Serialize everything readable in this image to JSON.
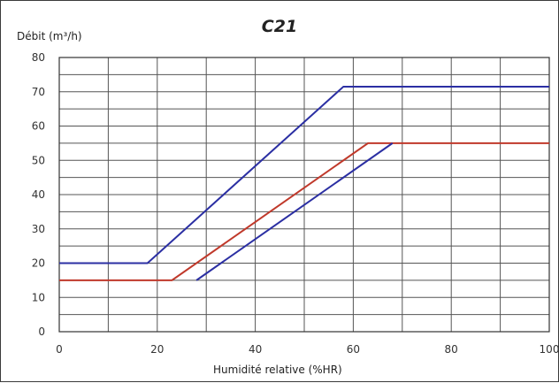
{
  "chart_data": {
    "type": "line",
    "title": "C21",
    "xlabel": "Humidité relative (%HR)",
    "ylabel": "Débit (m³/h)",
    "xlim": [
      0,
      100
    ],
    "ylim": [
      0,
      80
    ],
    "x_ticks": [
      "0",
      "20",
      "40",
      "60",
      "80",
      "100"
    ],
    "y_ticks": [
      "0",
      "10",
      "20",
      "30",
      "40",
      "50",
      "60",
      "70",
      "80"
    ],
    "grid": true,
    "series": [
      {
        "color": "#2b2fa3",
        "points": [
          [
            0,
            20
          ],
          [
            18,
            20
          ],
          [
            58,
            71.5
          ],
          [
            100,
            71.5
          ]
        ]
      },
      {
        "color": "#c0392b",
        "points": [
          [
            0,
            15
          ],
          [
            23,
            15
          ],
          [
            63,
            55
          ],
          [
            100,
            55
          ]
        ]
      },
      {
        "color": "#2b2fa3",
        "points": [
          [
            28,
            15
          ],
          [
            68,
            55
          ]
        ]
      }
    ]
  }
}
